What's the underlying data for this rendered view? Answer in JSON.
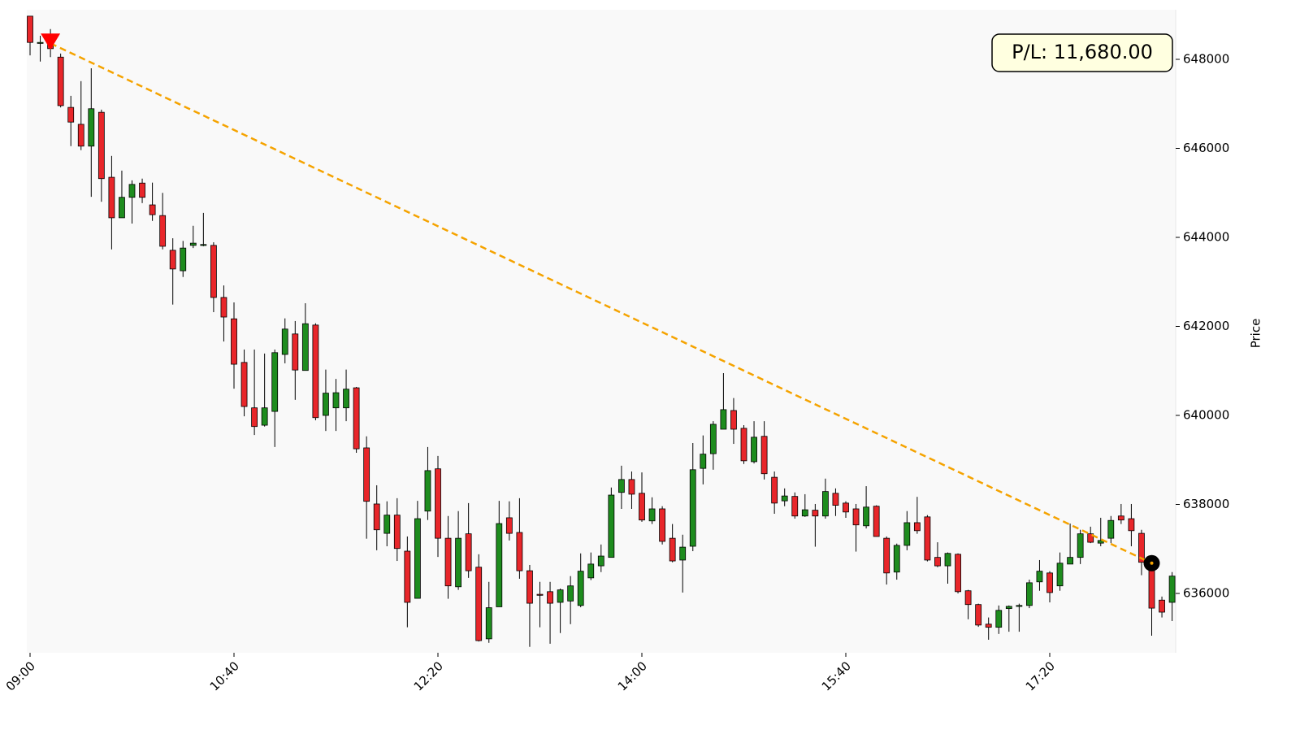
{
  "chart_data": {
    "type": "candlestick",
    "y_label": "Price",
    "annotation": "P/L: 11,680.00",
    "up_color": "#1e8c1e",
    "down_color": "#e8262a",
    "trade_color": "#f5a300",
    "x": [
      "09:00",
      "09:05",
      "09:10",
      "09:15",
      "09:20",
      "09:25",
      "09:30",
      "09:35",
      "09:40",
      "09:45",
      "09:50",
      "09:55",
      "10:00",
      "10:05",
      "10:10",
      "10:15",
      "10:20",
      "10:25",
      "10:30",
      "10:35",
      "10:40",
      "10:45",
      "10:50",
      "10:55",
      "11:00",
      "11:05",
      "11:10",
      "11:15",
      "11:20",
      "11:25",
      "11:30",
      "11:35",
      "11:40",
      "11:45",
      "11:50",
      "11:55",
      "12:00",
      "12:05",
      "12:10",
      "12:15",
      "12:20",
      "12:25",
      "12:30",
      "12:35",
      "12:40",
      "12:45",
      "12:50",
      "12:55",
      "13:00",
      "13:05",
      "13:10",
      "13:15",
      "13:20",
      "13:25",
      "13:30",
      "13:35",
      "13:40",
      "13:45",
      "13:50",
      "13:55",
      "14:00",
      "14:05",
      "14:10",
      "14:15",
      "14:20",
      "14:25",
      "14:30",
      "14:35",
      "14:40",
      "14:45",
      "14:50",
      "14:55",
      "15:00",
      "15:05",
      "15:10",
      "15:15",
      "15:20",
      "15:25",
      "15:30",
      "15:35",
      "15:40",
      "15:45",
      "15:50",
      "15:55",
      "16:00",
      "16:05",
      "16:10",
      "16:15",
      "16:20",
      "16:25",
      "16:30",
      "16:35",
      "16:40",
      "16:45",
      "16:50",
      "16:55",
      "17:00",
      "17:05",
      "17:10",
      "17:15",
      "17:20",
      "17:25",
      "17:30",
      "17:35",
      "17:40",
      "17:45",
      "17:50",
      "17:55",
      "18:00",
      "18:05",
      "18:10",
      "18:15",
      "18:20"
    ],
    "open": [
      648970,
      648380,
      648380,
      648050,
      646920,
      646540,
      646050,
      646810,
      645350,
      644440,
      644900,
      645220,
      644730,
      644490,
      643710,
      643250,
      643820,
      643840,
      643820,
      642650,
      642170,
      641190,
      640170,
      639780,
      640090,
      641370,
      641830,
      641010,
      642030,
      640000,
      640170,
      640170,
      640620,
      639270,
      638010,
      637350,
      637760,
      636950,
      635890,
      637850,
      638800,
      637240,
      636150,
      637340,
      636590,
      634980,
      635700,
      637700,
      637370,
      636510,
      635980,
      636040,
      635800,
      635830,
      635730,
      636350,
      636620,
      636810,
      638270,
      638560,
      638250,
      637630,
      637900,
      637240,
      636750,
      637060,
      638810,
      639140,
      639690,
      640110,
      639710,
      638960,
      639530,
      638610,
      638080,
      638180,
      637740,
      637870,
      637740,
      638250,
      638030,
      637900,
      637520,
      637960,
      637240,
      636480,
      637080,
      637590,
      637720,
      636810,
      636620,
      636880,
      636060,
      635750,
      635310,
      635240,
      635660,
      635710,
      635730,
      636260,
      636460,
      636170,
      636660,
      636810,
      637340,
      637130,
      637240,
      637740,
      637680,
      637350,
      636700,
      635850,
      635800
    ],
    "high": [
      648970,
      648530,
      648680,
      648130,
      647180,
      647510,
      647800,
      646870,
      645830,
      645500,
      645280,
      645320,
      645230,
      645000,
      643980,
      643920,
      644260,
      644550,
      643890,
      642920,
      642540,
      641480,
      641480,
      641390,
      641480,
      642180,
      642120,
      642520,
      642070,
      641030,
      640820,
      641030,
      640640,
      639530,
      638430,
      638070,
      638140,
      637280,
      638080,
      639290,
      639090,
      637740,
      637850,
      638030,
      636880,
      636260,
      638080,
      638070,
      638140,
      636640,
      636260,
      636260,
      636110,
      636390,
      636900,
      636920,
      637100,
      638380,
      638870,
      638740,
      638720,
      638160,
      637960,
      637560,
      637320,
      639380,
      639550,
      639870,
      640950,
      640390,
      639780,
      639870,
      639870,
      638740,
      638360,
      638270,
      638230,
      638010,
      638580,
      638360,
      638070,
      638010,
      638410,
      637980,
      637280,
      637120,
      637850,
      638170,
      637760,
      637150,
      636920,
      636900,
      636080,
      635770,
      635460,
      635730,
      635730,
      635770,
      636310,
      636750,
      636500,
      636920,
      637570,
      637430,
      637500,
      637700,
      637740,
      638010,
      638010,
      637430,
      636770,
      635930,
      636480
    ],
    "low": [
      648090,
      647950,
      648050,
      646920,
      646050,
      645960,
      644910,
      644800,
      643730,
      644440,
      644310,
      644770,
      644370,
      643730,
      642490,
      643110,
      643760,
      643800,
      642320,
      641660,
      640600,
      639980,
      639560,
      639750,
      639290,
      641170,
      640350,
      641010,
      639890,
      639650,
      639650,
      639870,
      639160,
      637230,
      636970,
      637060,
      636730,
      635240,
      635890,
      637650,
      636820,
      635880,
      636080,
      636350,
      634920,
      634890,
      635700,
      637190,
      636330,
      634800,
      635240,
      634870,
      635110,
      635310,
      635690,
      636300,
      636480,
      636810,
      637900,
      637900,
      637610,
      637560,
      637100,
      636700,
      636020,
      636950,
      638450,
      638780,
      639690,
      639360,
      638910,
      638920,
      638560,
      637790,
      637960,
      637680,
      637720,
      637050,
      637680,
      637740,
      637700,
      636940,
      637460,
      637280,
      636200,
      636310,
      636970,
      637340,
      636720,
      636590,
      636220,
      636000,
      635420,
      635250,
      634960,
      635090,
      635140,
      635140,
      635670,
      636060,
      635800,
      636060,
      636660,
      636660,
      637130,
      637060,
      637130,
      637560,
      637060,
      636410,
      635050,
      635460,
      635380
    ],
    "close": [
      648380,
      648380,
      648240,
      646960,
      646590,
      646050,
      646890,
      645320,
      644440,
      644900,
      645190,
      644900,
      644510,
      643800,
      643290,
      643760,
      643870,
      643840,
      642650,
      642210,
      641150,
      640200,
      639750,
      640170,
      641410,
      641940,
      641020,
      642060,
      639950,
      640500,
      640510,
      640590,
      639250,
      638070,
      637430,
      637760,
      637010,
      635800,
      637680,
      638760,
      637240,
      636170,
      637240,
      636510,
      634940,
      635680,
      637570,
      637350,
      636510,
      635780,
      635960,
      635780,
      636080,
      636170,
      636500,
      636660,
      636840,
      638210,
      638560,
      638230,
      637650,
      637900,
      637170,
      636730,
      637040,
      638780,
      639130,
      639800,
      640130,
      639690,
      638980,
      639510,
      638690,
      638030,
      638190,
      637740,
      637880,
      637740,
      638290,
      637980,
      637830,
      637540,
      637940,
      637280,
      636460,
      637080,
      637590,
      637410,
      636750,
      636620,
      636900,
      636040,
      635750,
      635290,
      635240,
      635620,
      635710,
      635730,
      636240,
      636500,
      636020,
      636680,
      636810,
      637340,
      637150,
      637190,
      637640,
      637650,
      637410,
      636700,
      635670,
      635580,
      636390
    ],
    "entry": {
      "x": "09:10",
      "price": 648360
    },
    "exit": {
      "x": "18:10",
      "price": 636680
    },
    "ylim": [
      634667,
      649114
    ],
    "yticks": [
      636000,
      638000,
      640000,
      642000,
      644000,
      646000,
      648000
    ],
    "xticks": [
      "09:00",
      "10:40",
      "12:20",
      "14:00",
      "15:40",
      "17:20"
    ]
  }
}
